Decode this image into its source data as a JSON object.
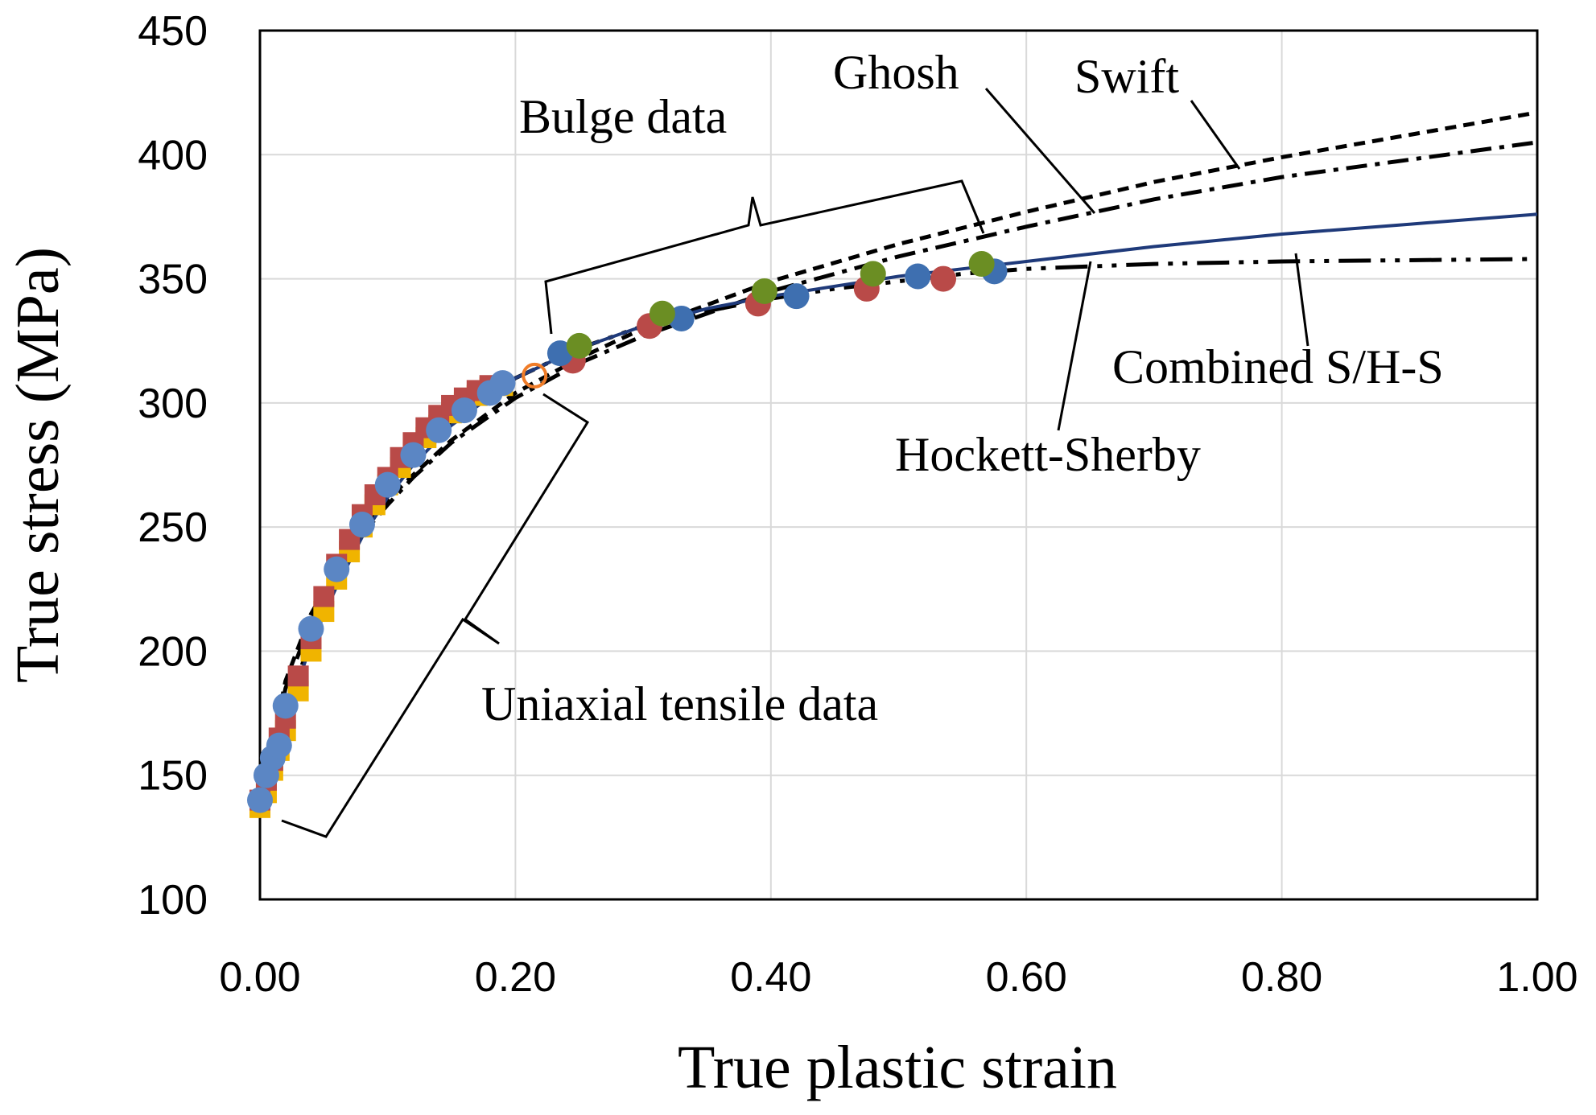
{
  "chart_data": {
    "type": "scatter",
    "title": "",
    "xlabel": "True plastic strain",
    "ylabel": "True stress (MPa)",
    "xlim": [
      0,
      1.0
    ],
    "ylim": [
      100,
      450
    ],
    "grid": true,
    "xticks": [
      0,
      0.2,
      0.4,
      0.6,
      0.8,
      1.0
    ],
    "xtick_labels": [
      "0.00",
      "0.20",
      "0.40",
      "0.60",
      "0.80",
      "1.00"
    ],
    "yticks": [
      100,
      150,
      200,
      250,
      300,
      350,
      400,
      450
    ],
    "ytick_labels": [
      "100",
      "150",
      "200",
      "250",
      "300",
      "350",
      "400",
      "450"
    ],
    "series": [
      {
        "name": "Swift",
        "kind": "line",
        "style": "dashed",
        "color": "#000000",
        "x": [
          0.005,
          0.02,
          0.04,
          0.06,
          0.08,
          0.1,
          0.12,
          0.15,
          0.2,
          0.25,
          0.3,
          0.4,
          0.5,
          0.6,
          0.7,
          0.8,
          0.9,
          1.0
        ],
        "y": [
          150,
          188,
          215,
          233,
          248,
          261,
          271,
          285,
          304,
          318,
          330,
          349,
          364,
          377,
          389,
          399,
          408,
          417
        ]
      },
      {
        "name": "Ghosh",
        "kind": "line",
        "style": "dash-dot",
        "color": "#000000",
        "x": [
          0.005,
          0.02,
          0.04,
          0.06,
          0.08,
          0.1,
          0.12,
          0.15,
          0.2,
          0.25,
          0.3,
          0.4,
          0.5,
          0.6,
          0.7,
          0.8,
          0.9,
          1.0
        ],
        "y": [
          148,
          185,
          212,
          231,
          247,
          259,
          270,
          284,
          302,
          316,
          327,
          345,
          359,
          371,
          382,
          391,
          398,
          405
        ]
      },
      {
        "name": "Hockett-Sherby",
        "kind": "line",
        "style": "long-dash-dot-dot",
        "color": "#000000",
        "x": [
          0.0,
          0.02,
          0.04,
          0.06,
          0.08,
          0.1,
          0.12,
          0.15,
          0.2,
          0.25,
          0.3,
          0.35,
          0.4,
          0.45,
          0.5,
          0.55,
          0.6,
          0.7,
          0.8,
          1.0
        ],
        "y": [
          140,
          175,
          205,
          228,
          247,
          263,
          276,
          292,
          310,
          322,
          331,
          337,
          342,
          346,
          349,
          352,
          354,
          356,
          357,
          358
        ]
      },
      {
        "name": "Combined S/H-S",
        "kind": "line",
        "style": "solid",
        "color": "#1f3a7a",
        "x": [
          0.0,
          0.02,
          0.04,
          0.06,
          0.08,
          0.1,
          0.12,
          0.15,
          0.2,
          0.25,
          0.3,
          0.35,
          0.4,
          0.5,
          0.6,
          0.7,
          0.8,
          0.9,
          1.0
        ],
        "y": [
          140,
          172,
          203,
          226,
          246,
          262,
          275,
          291,
          310,
          322,
          331,
          338,
          343,
          351,
          357,
          363,
          368,
          372,
          376
        ]
      },
      {
        "name": "Uniaxial tensile data (yellow)",
        "kind": "markers",
        "marker": "square",
        "color": "#f0b400",
        "x": [
          0.0,
          0.005,
          0.01,
          0.015,
          0.02,
          0.03,
          0.04,
          0.05,
          0.06,
          0.07,
          0.08,
          0.09,
          0.1,
          0.11,
          0.12,
          0.13,
          0.14,
          0.15,
          0.16,
          0.17,
          0.18,
          0.19
        ],
        "y": [
          137,
          143,
          152,
          160,
          168,
          184,
          200,
          216,
          229,
          240,
          250,
          259,
          267,
          274,
          280,
          286,
          291,
          296,
          300,
          303,
          306,
          307
        ]
      },
      {
        "name": "Uniaxial tensile data (red)",
        "kind": "markers",
        "marker": "square",
        "color": "#b94a48",
        "x": [
          0.0,
          0.005,
          0.01,
          0.015,
          0.02,
          0.03,
          0.04,
          0.05,
          0.06,
          0.07,
          0.08,
          0.09,
          0.1,
          0.11,
          0.12,
          0.13,
          0.14,
          0.15,
          0.16,
          0.17,
          0.18
        ],
        "y": [
          140,
          148,
          156,
          165,
          173,
          190,
          205,
          222,
          235,
          245,
          255,
          263,
          270,
          278,
          284,
          290,
          295,
          299,
          302,
          305,
          307
        ]
      },
      {
        "name": "Uniaxial tensile data (blue)",
        "kind": "markers",
        "marker": "circle",
        "color": "#5b86c4",
        "x": [
          0.0,
          0.005,
          0.01,
          0.015,
          0.02,
          0.04,
          0.06,
          0.08,
          0.1,
          0.12,
          0.14,
          0.16,
          0.18,
          0.19
        ],
        "y": [
          140,
          150,
          157,
          162,
          178,
          209,
          233,
          251,
          267,
          279,
          289,
          297,
          304,
          308
        ]
      },
      {
        "name": "Uniaxial end marker",
        "kind": "markers",
        "marker": "open-circle",
        "color": "#f07c28",
        "x": [
          0.215
        ],
        "y": [
          311
        ]
      },
      {
        "name": "Bulge data (red)",
        "kind": "markers",
        "marker": "circle",
        "color": "#b94a48",
        "x": [
          0.245,
          0.305,
          0.39,
          0.475,
          0.535
        ],
        "y": [
          317,
          331,
          340,
          346,
          350
        ]
      },
      {
        "name": "Bulge data (blue)",
        "kind": "markers",
        "marker": "circle",
        "color": "#3e6fb0",
        "x": [
          0.235,
          0.33,
          0.42,
          0.515,
          0.575
        ],
        "y": [
          320,
          334,
          343,
          351,
          353
        ]
      },
      {
        "name": "Bulge data (green)",
        "kind": "markers",
        "marker": "circle",
        "color": "#6b8e23",
        "x": [
          0.25,
          0.315,
          0.395,
          0.48,
          0.565
        ],
        "y": [
          323,
          336,
          345,
          352,
          356
        ]
      }
    ],
    "annotations": [
      "Ghosh",
      "Swift",
      "Bulge data",
      "Combined S/H-S",
      "Hockett-Sherby",
      "Uniaxial tensile data"
    ]
  }
}
